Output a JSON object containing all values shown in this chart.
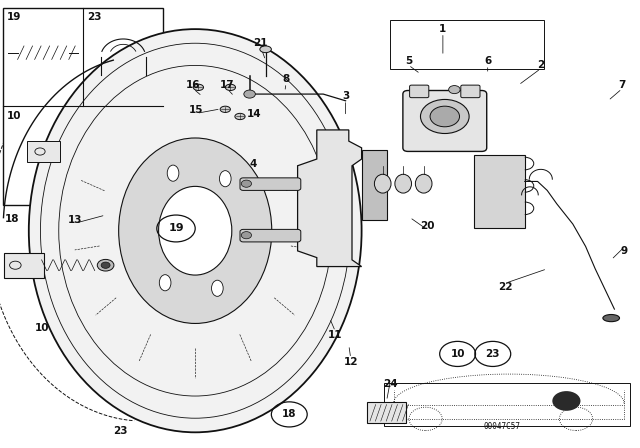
{
  "bg_color": "#ffffff",
  "fig_width": 6.4,
  "fig_height": 4.48,
  "dpi": 100,
  "lc": "#111111",
  "bottom_ref_code": "00047C57"
}
